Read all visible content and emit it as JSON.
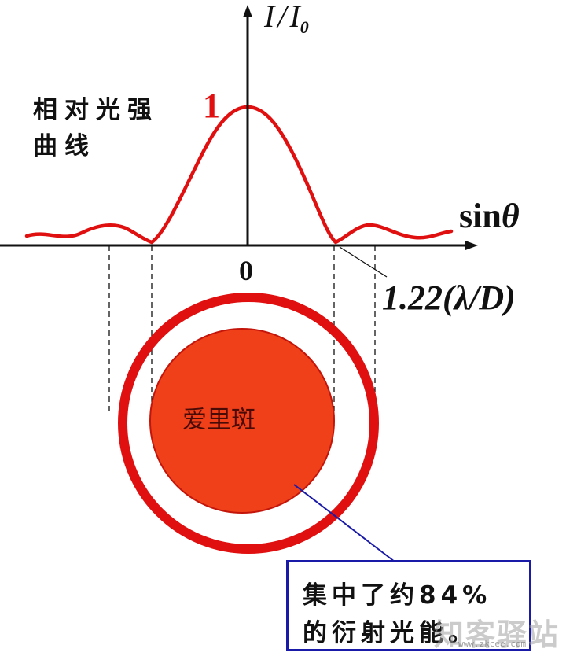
{
  "axis": {
    "y_label_main": "I",
    "y_label_slash": "/",
    "y_label_sub": "I",
    "y_label_subscript": "0",
    "x_label_main": "sin",
    "x_label_theta": "θ",
    "origin": "0",
    "min_position": "1.22(λ/D)"
  },
  "curve_label": {
    "line1": "相对光强",
    "line2": "曲线",
    "peak_value": "1"
  },
  "airy": {
    "label": "爱里斑"
  },
  "note": {
    "line1": "集中了约84%",
    "line2": "的衍射光能。"
  },
  "watermark": {
    "text": "知客驿站",
    "sub": "www.zkcee.com"
  },
  "colors": {
    "curve": "#e01010",
    "disk_fill": "#f0401a",
    "ring": "#e01010",
    "pointer_line": "#1a1aa8",
    "box_border": "#1a1aa8"
  }
}
